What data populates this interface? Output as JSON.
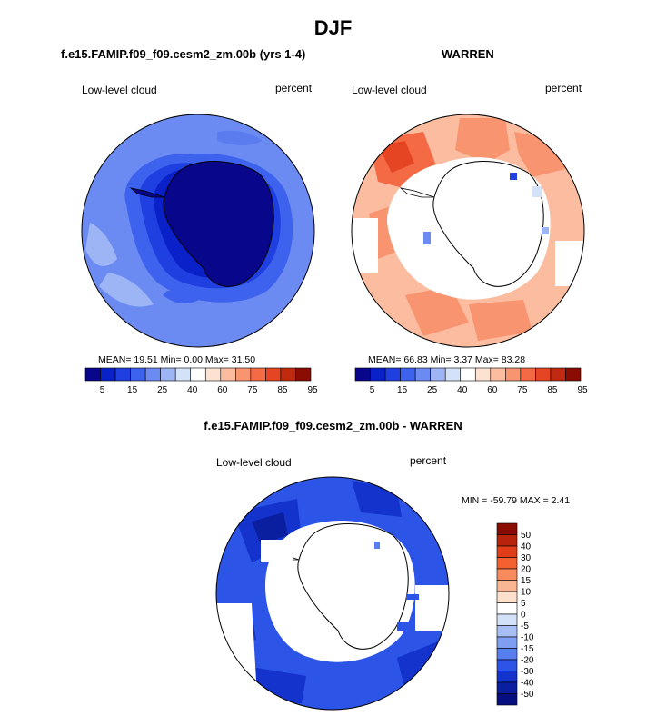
{
  "main_title": "DJF",
  "panels": {
    "left": {
      "title": "f.e15.FAMIP.f09_f09.cesm2_zm.00b (yrs 1-4)",
      "variable": "Low-level cloud",
      "units": "percent",
      "stats": "MEAN=  19.51   Min=   0.00   Max=  31.50"
    },
    "right": {
      "title": "WARREN",
      "variable": "Low-level cloud",
      "units": "percent",
      "stats": "MEAN=  66.83   Min=   3.37   Max=  83.28"
    },
    "diff": {
      "title": "f.e15.FAMIP.f09_f09.cesm2_zm.00b - WARREN",
      "variable": "Low-level cloud",
      "units": "percent",
      "stats": "MIN = -59.79  MAX =   2.41"
    }
  },
  "colorbar_abs": {
    "colors": [
      "#08078c",
      "#0a20c8",
      "#1f3fe0",
      "#3d63ee",
      "#6c8bf2",
      "#9db5f5",
      "#d3e2f8",
      "#ffffff",
      "#fde2d2",
      "#fbbca0",
      "#f89470",
      "#f46a45",
      "#e54522",
      "#c02a10",
      "#8b0c02"
    ],
    "tick_labels": [
      "5",
      "15",
      "25",
      "40",
      "60",
      "75",
      "85",
      "95"
    ]
  },
  "colorbar_diff": {
    "colors": [
      "#8b0c02",
      "#b8230c",
      "#e03d18",
      "#f4602f",
      "#f78b5e",
      "#fab592",
      "#fde0cc",
      "#ffffff",
      "#d3e2f8",
      "#a8bff5",
      "#7f9ef2",
      "#577df0",
      "#2c54e6",
      "#1433cc",
      "#0a1ea0",
      "#060f80"
    ],
    "tick_labels": [
      "50",
      "40",
      "30",
      "20",
      "15",
      "10",
      "5",
      "0",
      "-5",
      "-10",
      "-15",
      "-20",
      "-30",
      "-40",
      "-50"
    ]
  }
}
